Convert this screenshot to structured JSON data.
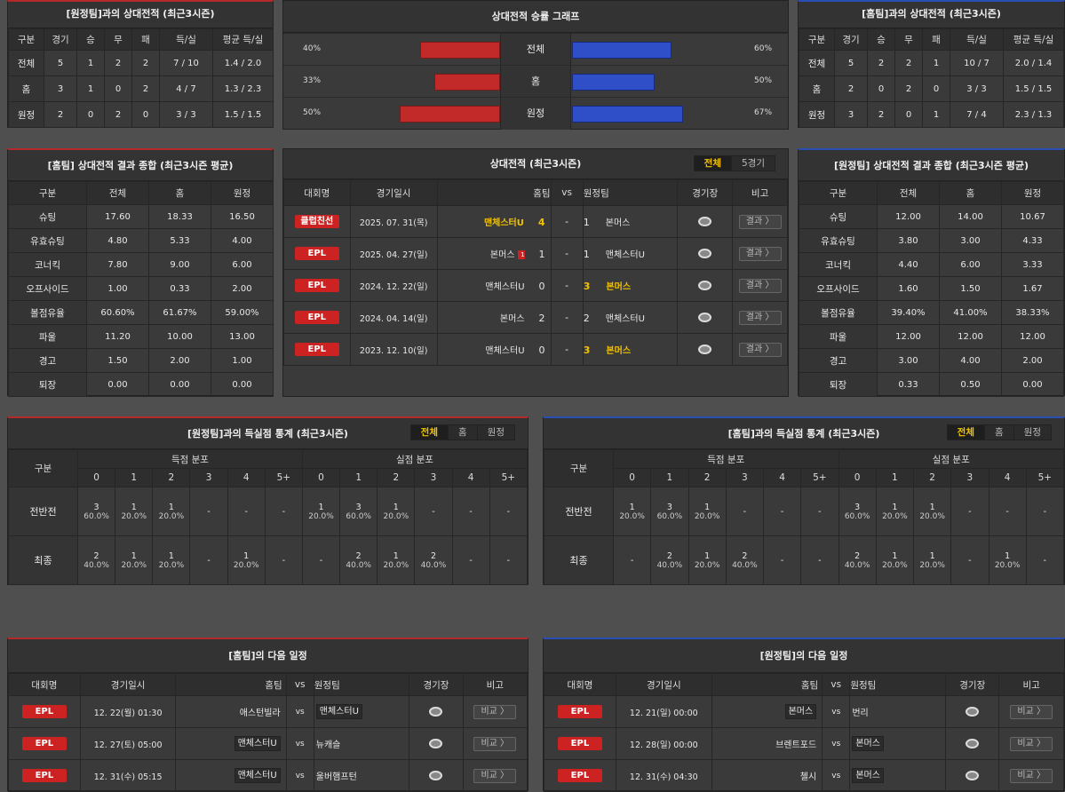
{
  "away_h2h": {
    "title": "[원정팀]과의 상대전적 (최근3시즌)",
    "headers": [
      "구분",
      "경기",
      "승",
      "무",
      "패",
      "득/실",
      "평균 득/실"
    ],
    "rows": [
      [
        "전체",
        "5",
        "1",
        "2",
        "2",
        "7 / 10",
        "1.4 / 2.0"
      ],
      [
        "홈",
        "3",
        "1",
        "0",
        "2",
        "4 / 7",
        "1.3 / 2.3"
      ],
      [
        "원정",
        "2",
        "0",
        "2",
        "0",
        "3 / 3",
        "1.5 / 1.5"
      ]
    ]
  },
  "graph": {
    "title": "상대전적 승률 그래프",
    "rows": [
      {
        "label": "전체",
        "left": "40%",
        "right": "60%",
        "lv": 40,
        "rv": 60
      },
      {
        "label": "홈",
        "left": "33%",
        "right": "50%",
        "lv": 33,
        "rv": 50
      },
      {
        "label": "원정",
        "left": "50%",
        "right": "67%",
        "lv": 50,
        "rv": 67
      }
    ],
    "color_left": "#c22a2a",
    "color_right": "#2f4fc8"
  },
  "home_h2h": {
    "title": "[홈팀]과의 상대전적 (최근3시즌)",
    "headers": [
      "구분",
      "경기",
      "승",
      "무",
      "패",
      "득/실",
      "평균 득/실"
    ],
    "rows": [
      [
        "전체",
        "5",
        "2",
        "2",
        "1",
        "10 / 7",
        "2.0 / 1.4"
      ],
      [
        "홈",
        "2",
        "0",
        "2",
        "0",
        "3 / 3",
        "1.5 / 1.5"
      ],
      [
        "원정",
        "3",
        "2",
        "0",
        "1",
        "7 / 4",
        "2.3 / 1.3"
      ]
    ]
  },
  "home_summary": {
    "title": "[홈팀] 상대전적 결과 종합 (최근3시즌 평균)",
    "headers": [
      "구분",
      "전체",
      "홈",
      "원정"
    ],
    "rows": [
      [
        "슈팅",
        "17.60",
        "18.33",
        "16.50"
      ],
      [
        "유효슈팅",
        "4.80",
        "5.33",
        "4.00"
      ],
      [
        "코너킥",
        "7.80",
        "9.00",
        "6.00"
      ],
      [
        "오프사이드",
        "1.00",
        "0.33",
        "2.00"
      ],
      [
        "볼점유율",
        "60.60%",
        "61.67%",
        "59.00%"
      ],
      [
        "파울",
        "11.20",
        "10.00",
        "13.00"
      ],
      [
        "경고",
        "1.50",
        "2.00",
        "1.00"
      ],
      [
        "퇴장",
        "0.00",
        "0.00",
        "0.00"
      ]
    ]
  },
  "away_summary": {
    "title": "[원정팀] 상대전적 결과 종합 (최근3시즌 평균)",
    "headers": [
      "구분",
      "전체",
      "홈",
      "원정"
    ],
    "rows": [
      [
        "슈팅",
        "12.00",
        "14.00",
        "10.67"
      ],
      [
        "유효슈팅",
        "3.80",
        "3.00",
        "4.33"
      ],
      [
        "코너킥",
        "4.40",
        "6.00",
        "3.33"
      ],
      [
        "오프사이드",
        "1.60",
        "1.50",
        "1.67"
      ],
      [
        "볼점유율",
        "39.40%",
        "41.00%",
        "38.33%"
      ],
      [
        "파울",
        "12.00",
        "12.00",
        "12.00"
      ],
      [
        "경고",
        "3.00",
        "4.00",
        "2.00"
      ],
      [
        "퇴장",
        "0.33",
        "0.50",
        "0.00"
      ]
    ]
  },
  "h2h_matches": {
    "title": "상대전적 (최근3시즌)",
    "tabs": [
      "전체",
      "5경기"
    ],
    "headers": {
      "league": "대회명",
      "date": "경기일시",
      "home": "홈팀",
      "vs": "vs",
      "away": "원정팀",
      "venue": "경기장",
      "note": "비고"
    },
    "btn": "결과 〉",
    "rows": [
      {
        "league": "클럽친선",
        "date": "2025. 07. 31(목)",
        "home": "맨체스터U",
        "hs": "4",
        "as": "1",
        "away": "본머스",
        "win": "home",
        "card": ""
      },
      {
        "league": "EPL",
        "date": "2025. 04. 27(일)",
        "home": "본머스",
        "hs": "1",
        "as": "1",
        "away": "맨체스터U",
        "win": "",
        "card": "1"
      },
      {
        "league": "EPL",
        "date": "2024. 12. 22(일)",
        "home": "맨체스터U",
        "hs": "0",
        "as": "3",
        "away": "본머스",
        "win": "away",
        "card": ""
      },
      {
        "league": "EPL",
        "date": "2024. 04. 14(일)",
        "home": "본머스",
        "hs": "2",
        "as": "2",
        "away": "맨체스터U",
        "win": "",
        "card": ""
      },
      {
        "league": "EPL",
        "date": "2023. 12. 10(일)",
        "home": "맨체스터U",
        "hs": "0",
        "as": "3",
        "away": "본머스",
        "win": "away",
        "card": ""
      }
    ]
  },
  "goal_away": {
    "title": "[원정팀]과의 득실점 통계 (최근3시즌)",
    "tabs": [
      "전체",
      "홈",
      "원정"
    ],
    "h_label": "구분",
    "scored": "득점 분포",
    "conceded": "실점 분포",
    "cols": [
      "0",
      "1",
      "2",
      "3",
      "4",
      "5+"
    ],
    "rows": [
      {
        "label": "전반전",
        "cells": [
          [
            "3",
            "60.0%"
          ],
          [
            "1",
            "20.0%"
          ],
          [
            "1",
            "20.0%"
          ],
          [
            "-",
            ""
          ],
          [
            "-",
            ""
          ],
          [
            "-",
            ""
          ],
          [
            "1",
            "20.0%"
          ],
          [
            "3",
            "60.0%"
          ],
          [
            "1",
            "20.0%"
          ],
          [
            "-",
            ""
          ],
          [
            "-",
            ""
          ],
          [
            "-",
            ""
          ]
        ]
      },
      {
        "label": "최종",
        "cells": [
          [
            "2",
            "40.0%"
          ],
          [
            "1",
            "20.0%"
          ],
          [
            "1",
            "20.0%"
          ],
          [
            "-",
            ""
          ],
          [
            "1",
            "20.0%"
          ],
          [
            "-",
            ""
          ],
          [
            "-",
            ""
          ],
          [
            "2",
            "40.0%"
          ],
          [
            "1",
            "20.0%"
          ],
          [
            "2",
            "40.0%"
          ],
          [
            "-",
            ""
          ],
          [
            "-",
            ""
          ]
        ]
      }
    ]
  },
  "goal_home": {
    "title": "[홈팀]과의 득실점 통계 (최근3시즌)",
    "tabs": [
      "전체",
      "홈",
      "원정"
    ],
    "h_label": "구분",
    "scored": "득점 분포",
    "conceded": "실점 분포",
    "cols": [
      "0",
      "1",
      "2",
      "3",
      "4",
      "5+"
    ],
    "rows": [
      {
        "label": "전반전",
        "cells": [
          [
            "1",
            "20.0%"
          ],
          [
            "3",
            "60.0%"
          ],
          [
            "1",
            "20.0%"
          ],
          [
            "-",
            ""
          ],
          [
            "-",
            ""
          ],
          [
            "-",
            ""
          ],
          [
            "3",
            "60.0%"
          ],
          [
            "1",
            "20.0%"
          ],
          [
            "1",
            "20.0%"
          ],
          [
            "-",
            ""
          ],
          [
            "-",
            ""
          ],
          [
            "-",
            ""
          ]
        ]
      },
      {
        "label": "최종",
        "cells": [
          [
            "-",
            ""
          ],
          [
            "2",
            "40.0%"
          ],
          [
            "1",
            "20.0%"
          ],
          [
            "2",
            "40.0%"
          ],
          [
            "-",
            ""
          ],
          [
            "-",
            ""
          ],
          [
            "2",
            "40.0%"
          ],
          [
            "1",
            "20.0%"
          ],
          [
            "1",
            "20.0%"
          ],
          [
            "-",
            ""
          ],
          [
            "1",
            "20.0%"
          ],
          [
            "-",
            ""
          ]
        ]
      }
    ]
  },
  "next_home": {
    "title": "[홈팀]의 다음 일정",
    "headers": {
      "league": "대회명",
      "date": "경기일시",
      "home": "홈팀",
      "vs": "vs",
      "away": "원정팀",
      "venue": "경기장",
      "note": "비고"
    },
    "btn": "비교 〉",
    "rows": [
      {
        "league": "EPL",
        "date": "12. 22(월) 01:30",
        "home": "애스턴빌라",
        "away": "맨체스터U",
        "box": "away"
      },
      {
        "league": "EPL",
        "date": "12. 27(토) 05:00",
        "home": "맨체스터U",
        "away": "뉴캐슬",
        "box": "home"
      },
      {
        "league": "EPL",
        "date": "12. 31(수) 05:15",
        "home": "맨체스터U",
        "away": "울버햄프턴",
        "box": "home"
      }
    ]
  },
  "next_away": {
    "title": "[원정팀]의 다음 일정",
    "headers": {
      "league": "대회명",
      "date": "경기일시",
      "home": "홈팀",
      "vs": "vs",
      "away": "원정팀",
      "venue": "경기장",
      "note": "비고"
    },
    "btn": "비교 〉",
    "rows": [
      {
        "league": "EPL",
        "date": "12. 21(일) 00:00",
        "home": "본머스",
        "away": "번리",
        "box": "home"
      },
      {
        "league": "EPL",
        "date": "12. 28(일) 00:00",
        "home": "브렌트포드",
        "away": "본머스",
        "box": "away"
      },
      {
        "league": "EPL",
        "date": "12. 31(수) 04:30",
        "home": "첼시",
        "away": "본머스",
        "box": "away"
      }
    ]
  }
}
